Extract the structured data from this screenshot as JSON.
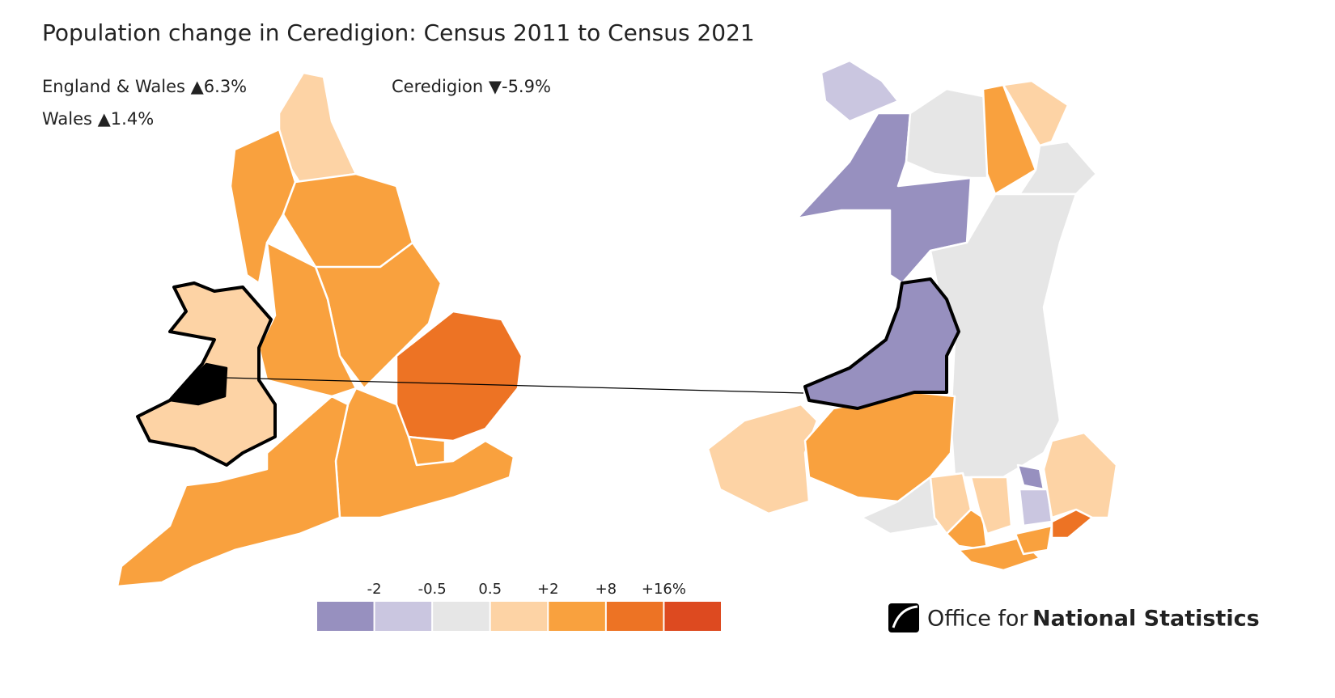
{
  "title": "Population change in Ceredigion: Census 2011 to Census 2021",
  "stats": {
    "england_wales": "England & Wales ▲6.3%",
    "wales": "Wales ▲1.4%",
    "ceredigion": "Ceredigion ▼-5.9%"
  },
  "legend": {
    "colors": [
      "#9790bf",
      "#cac6e0",
      "#e6e6e6",
      "#fdd3a5",
      "#f9a13e",
      "#ed7324",
      "#dd4a20"
    ],
    "breaks": [
      "-2",
      "-0.5",
      "0.5",
      "+2",
      "+8",
      "+16%"
    ]
  },
  "logo": {
    "prefix": "Office for",
    "name": "National Statistics"
  }
}
